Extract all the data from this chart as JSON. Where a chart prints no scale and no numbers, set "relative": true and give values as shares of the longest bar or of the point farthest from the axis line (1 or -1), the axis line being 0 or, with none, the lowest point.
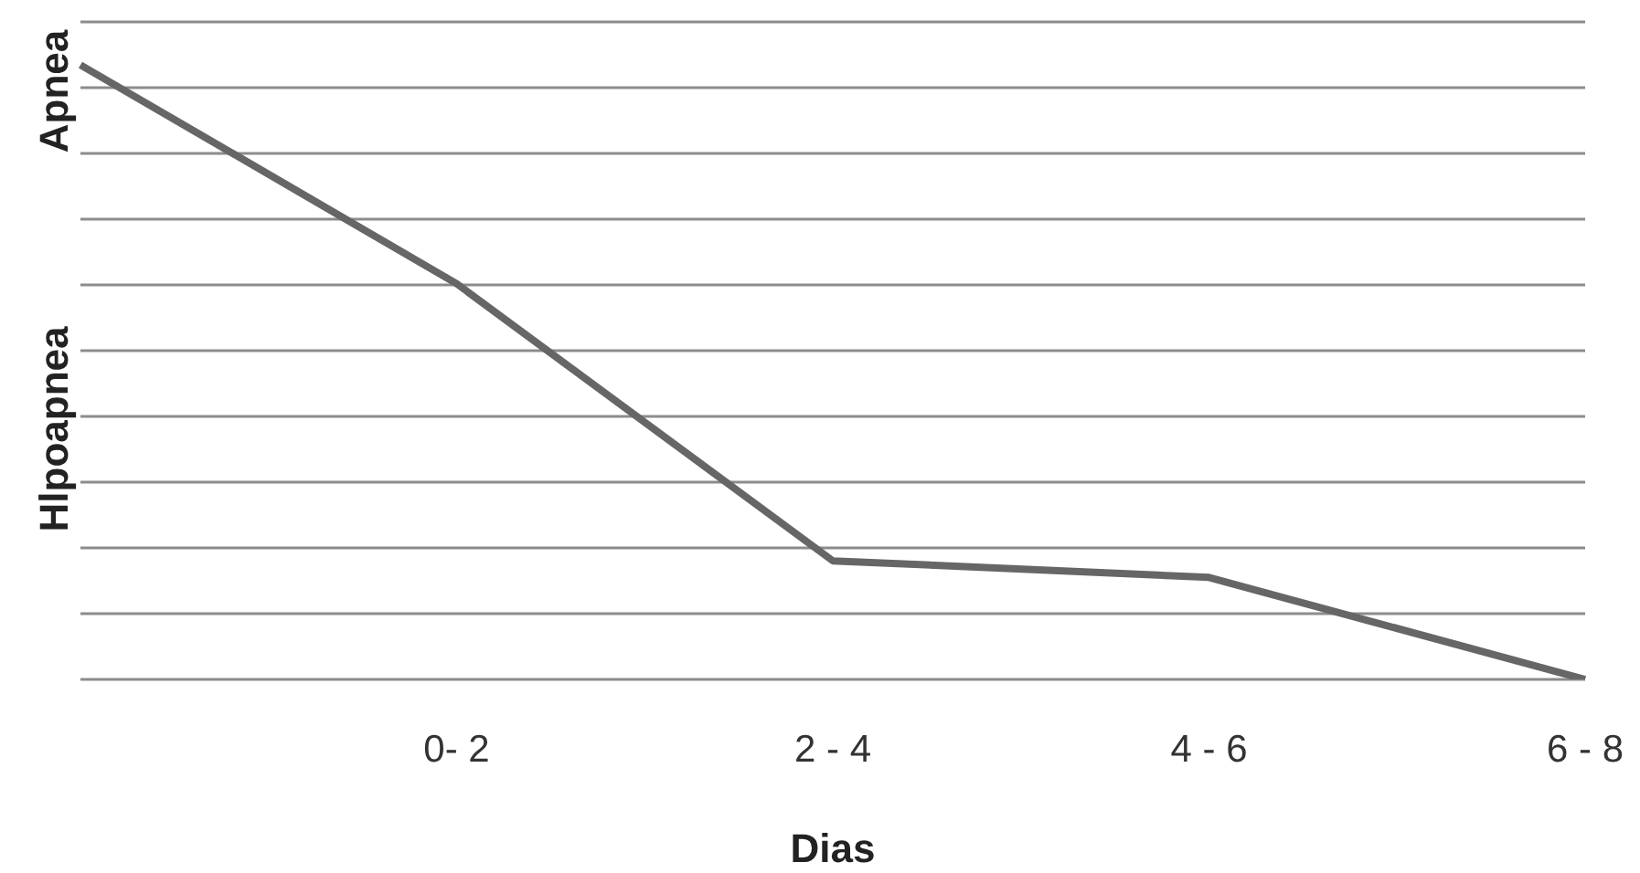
{
  "chart_data": {
    "type": "line",
    "xlabel": "Dias",
    "relative": true,
    "grid": "y",
    "categories": [
      null,
      "0- 2",
      "2 - 4",
      "4 - 6",
      "6 - 8"
    ],
    "series": [
      {
        "color": "#666666",
        "values": [
          1,
          0.644,
          0.193,
          0.166,
          0
        ]
      }
    ],
    "annotations": [
      "Apnea",
      "Hlpoapnea"
    ],
    "marker": "none",
    "legend": false
  }
}
